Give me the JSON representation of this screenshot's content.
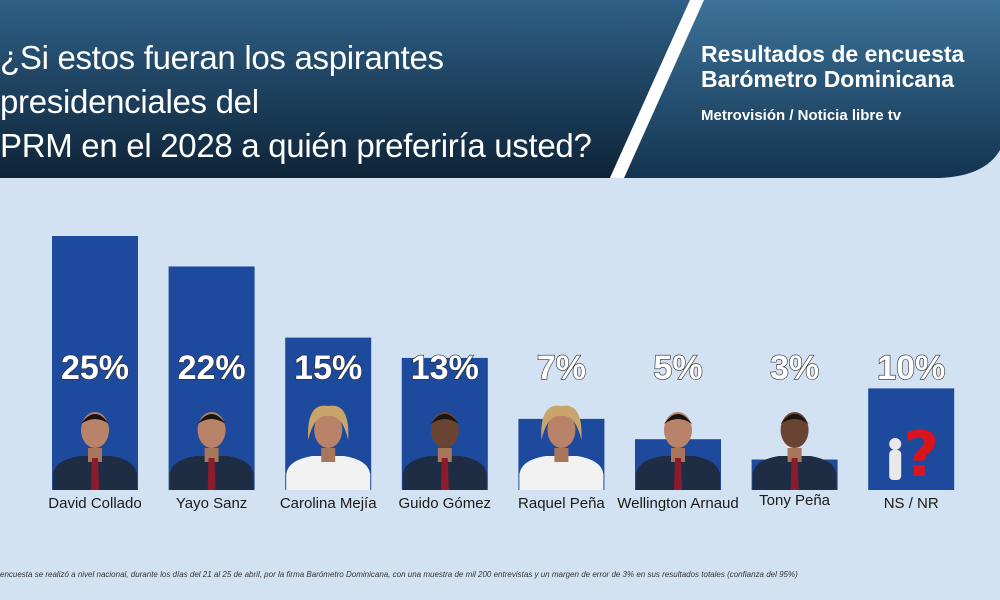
{
  "header": {
    "question": "¿Si estos fueran los aspirantes presidenciales del\nPRM en el 2028 a quién preferiría usted?",
    "results_title": "Resultados de encuesta\nBarómetro Dominicana",
    "results_source": "Metrovisión / Noticia libre tv"
  },
  "colors": {
    "bar": "#1e4a9e",
    "header_dark": "#0f2a3e",
    "header_mid": "#234c6b",
    "background": "#d3e2f2"
  },
  "chart_data": {
    "type": "bar",
    "categories": [
      "David Collado",
      "Yayo Sanz",
      "Carolina Mejía",
      "Guido Gómez",
      "Raquel Peña",
      "Wellington Arnaud",
      "Tony Peña",
      "NS / NR"
    ],
    "values": [
      25,
      22,
      15,
      13,
      7,
      5,
      3,
      10
    ],
    "value_labels": [
      "25%",
      "22%",
      "15%",
      "13%",
      "7%",
      "5%",
      "3%",
      "10%"
    ],
    "ylim": [
      0,
      25
    ],
    "grid": false,
    "legend": "none",
    "title": "",
    "xlabel": "",
    "ylabel": ""
  },
  "footnote": "encuesta se realizó a nivel nacional, durante los días del 21 al 25 de abril, por la firma Barómetro Dominicana, con una muestra de mil 200 entrevistas y un margen de error de 3% en sus resultados totales (confianza del 95%)"
}
